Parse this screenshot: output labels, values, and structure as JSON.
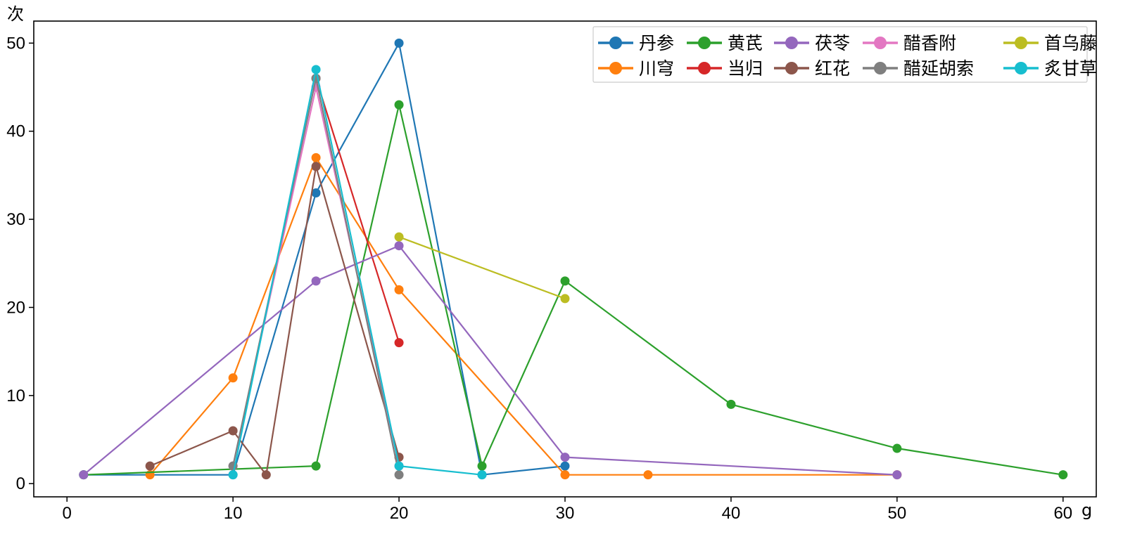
{
  "chart_data": {
    "type": "line",
    "title": "",
    "xlabel": "g",
    "ylabel": "次",
    "xlim": [
      -2,
      62
    ],
    "ylim": [
      -1.5,
      52.5
    ],
    "x_ticks": [
      0,
      10,
      20,
      30,
      40,
      50,
      60
    ],
    "y_ticks": [
      0,
      10,
      20,
      30,
      40,
      50
    ],
    "grid": false,
    "legend_position": "top-right",
    "series": [
      {
        "name": "丹参",
        "color": "#1f77b4",
        "x": [
          1,
          10,
          15,
          20,
          25,
          30
        ],
        "y": [
          1,
          1,
          33,
          50,
          1,
          2
        ]
      },
      {
        "name": "川穹",
        "color": "#ff7f0e",
        "x": [
          5,
          10,
          15,
          20,
          30,
          35,
          50
        ],
        "y": [
          1,
          12,
          37,
          22,
          1,
          1,
          1
        ]
      },
      {
        "name": "黄芪",
        "color": "#2ca02c",
        "x": [
          1,
          15,
          20,
          25,
          30,
          40,
          50,
          60
        ],
        "y": [
          1,
          2,
          43,
          2,
          23,
          9,
          4,
          1
        ]
      },
      {
        "name": "当归",
        "color": "#d62728",
        "x": [
          15,
          20
        ],
        "y": [
          46,
          16
        ]
      },
      {
        "name": "茯苓",
        "color": "#9467bd",
        "x": [
          1,
          15,
          20,
          30,
          50
        ],
        "y": [
          1,
          23,
          27,
          3,
          1
        ]
      },
      {
        "name": "红花",
        "color": "#8c564b",
        "x": [
          5,
          10,
          12,
          15,
          20
        ],
        "y": [
          2,
          6,
          1,
          36,
          3
        ]
      },
      {
        "name": "醋香附",
        "color": "#e377c2",
        "x": [
          10,
          15,
          20
        ],
        "y": [
          2,
          45,
          2
        ]
      },
      {
        "name": "醋延胡索",
        "color": "#7f7f7f",
        "x": [
          10,
          15,
          20
        ],
        "y": [
          2,
          46,
          1
        ]
      },
      {
        "name": "首乌藤",
        "color": "#bcbd22",
        "x": [
          20,
          30
        ],
        "y": [
          28,
          21
        ]
      },
      {
        "name": "炙甘草",
        "color": "#17becf",
        "x": [
          10,
          15,
          20,
          25
        ],
        "y": [
          1,
          47,
          2,
          1
        ]
      }
    ]
  }
}
